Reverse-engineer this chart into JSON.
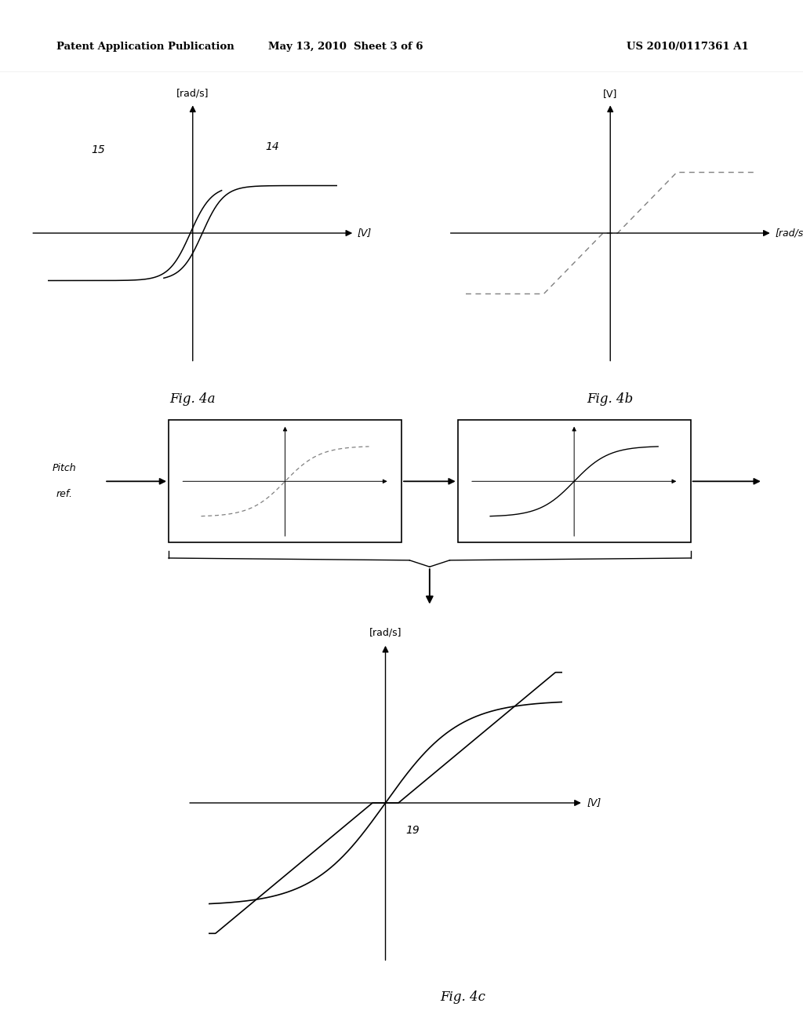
{
  "header_left": "Patent Application Publication",
  "header_mid": "May 13, 2010  Sheet 3 of 6",
  "header_right": "US 2010/0117361 A1",
  "fig4a_title": "Fig. 4a",
  "fig4b_title": "Fig. 4b",
  "fig4c_title": "Fig. 4c",
  "fig4a_xlabel": "[V]",
  "fig4a_ylabel": "[rad/s]",
  "fig4b_xlabel": "[rad/s]",
  "fig4b_ylabel": "[V]",
  "fig4c_xlabel": "[V]",
  "fig4c_ylabel": "[rad/s]",
  "label_14": "14",
  "label_15": "15",
  "label_19": "19",
  "pitch_ref_line1": "Pitch",
  "pitch_ref_line2": "ref.",
  "background": "#ffffff",
  "line_color": "#000000",
  "gray_color": "#999999"
}
